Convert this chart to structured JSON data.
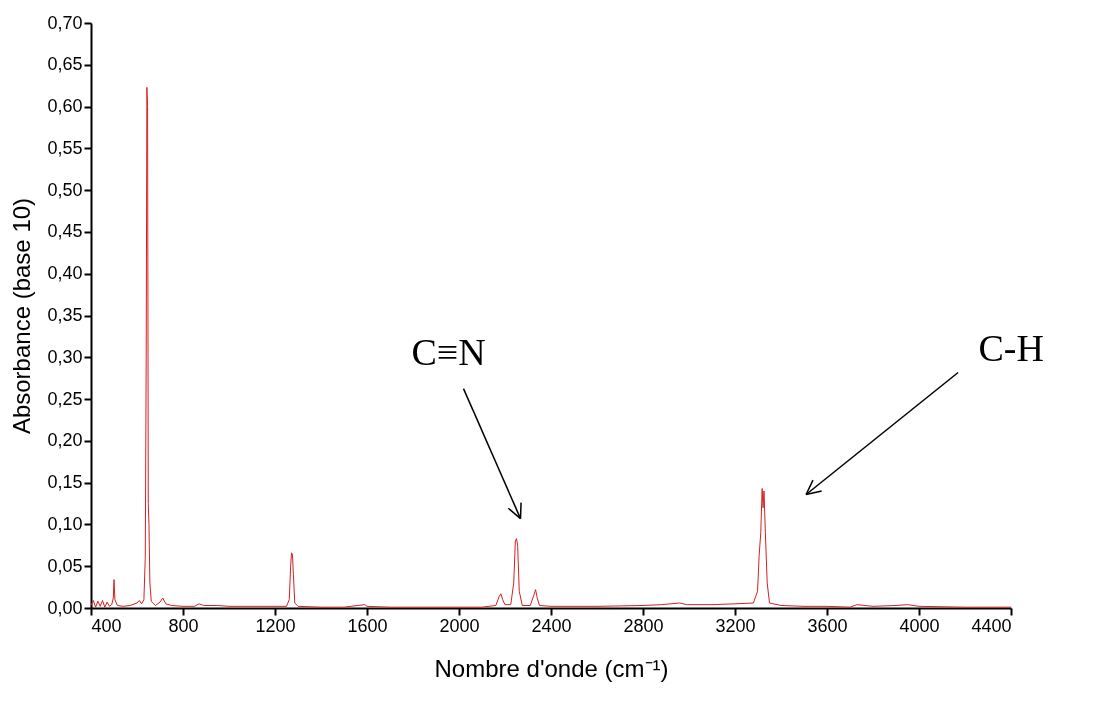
{
  "chart_data": {
    "type": "line",
    "xlabel": "Nombre d'onde (cm⁻¹)",
    "ylabel": "Absorbance (base 10)",
    "x": [
      400,
      410,
      420,
      430,
      440,
      450,
      460,
      470,
      480,
      490,
      497,
      500,
      504,
      515,
      540,
      570,
      600,
      610,
      620,
      630,
      636,
      640,
      643,
      646,
      649,
      652,
      656,
      662,
      680,
      700,
      712,
      725,
      750,
      800,
      850,
      870,
      890,
      950,
      1000,
      1100,
      1200,
      1250,
      1262,
      1268,
      1272,
      1276,
      1280,
      1286,
      1300,
      1400,
      1500,
      1590,
      1600,
      1700,
      1800,
      1900,
      2000,
      2100,
      2160,
      2175,
      2182,
      2190,
      2200,
      2225,
      2238,
      2245,
      2250,
      2255,
      2262,
      2275,
      2310,
      2325,
      2333,
      2340,
      2350,
      2400,
      2600,
      2800,
      2880,
      2960,
      2990,
      3100,
      3200,
      3280,
      3298,
      3305,
      3312,
      3318,
      3322,
      3326,
      3332,
      3340,
      3350,
      3400,
      3500,
      3600,
      3700,
      3730,
      3800,
      3900,
      3950,
      4000,
      4200,
      4400
    ],
    "series": [
      {
        "color": "#d62020",
        "values": [
          0.003,
          0.009,
          0.001,
          0.008,
          0.002,
          0.009,
          0.001,
          0.007,
          0.002,
          0.004,
          0.012,
          0.034,
          0.01,
          0.003,
          0.002,
          0.003,
          0.006,
          0.009,
          0.005,
          0.01,
          0.06,
          0.3,
          0.623,
          0.6,
          0.125,
          0.1,
          0.03,
          0.008,
          0.003,
          0.007,
          0.012,
          0.005,
          0.003,
          0.002,
          0.002,
          0.005,
          0.003,
          0.003,
          0.002,
          0.002,
          0.002,
          0.002,
          0.01,
          0.05,
          0.066,
          0.064,
          0.04,
          0.006,
          0.002,
          0.001,
          0.001,
          0.004,
          0.002,
          0.001,
          0.001,
          0.001,
          0.001,
          0.001,
          0.003,
          0.014,
          0.017,
          0.01,
          0.004,
          0.004,
          0.03,
          0.08,
          0.083,
          0.075,
          0.02,
          0.003,
          0.003,
          0.015,
          0.022,
          0.012,
          0.003,
          0.002,
          0.002,
          0.003,
          0.004,
          0.006,
          0.004,
          0.004,
          0.005,
          0.006,
          0.02,
          0.063,
          0.09,
          0.143,
          0.12,
          0.14,
          0.09,
          0.03,
          0.006,
          0.003,
          0.002,
          0.002,
          0.001,
          0.004,
          0.002,
          0.003,
          0.004,
          0.002,
          0.001,
          0.001
        ]
      }
    ],
    "xlim": [
      400,
      4400
    ],
    "xticks": [
      400,
      800,
      1200,
      1600,
      2000,
      2400,
      2800,
      3200,
      3600,
      4000,
      4400
    ],
    "ylim": [
      0,
      0.7
    ],
    "yticks": [
      {
        "value": 0,
        "label": "0,00"
      },
      {
        "value": 0.05,
        "label": "0,05"
      },
      {
        "value": 0.1,
        "label": "0,10"
      },
      {
        "value": 0.15,
        "label": "0,15"
      },
      {
        "value": 0.2,
        "label": "0,20"
      },
      {
        "value": 0.25,
        "label": "0,25"
      },
      {
        "value": 0.3,
        "label": "0,30"
      },
      {
        "value": 0.35,
        "label": "0,35"
      },
      {
        "value": 0.4,
        "label": "0,40"
      },
      {
        "value": 0.45,
        "label": "0,45"
      },
      {
        "value": 0.5,
        "label": "0,50"
      },
      {
        "value": 0.55,
        "label": "0,55"
      },
      {
        "value": 0.6,
        "label": "0,60"
      },
      {
        "value": 0.65,
        "label": "0,65"
      },
      {
        "value": 0.7,
        "label": "0,70"
      }
    ],
    "annotations": [
      "C≡N",
      "C-H"
    ],
    "grid": false,
    "marker": "none",
    "line_style": "solid"
  }
}
